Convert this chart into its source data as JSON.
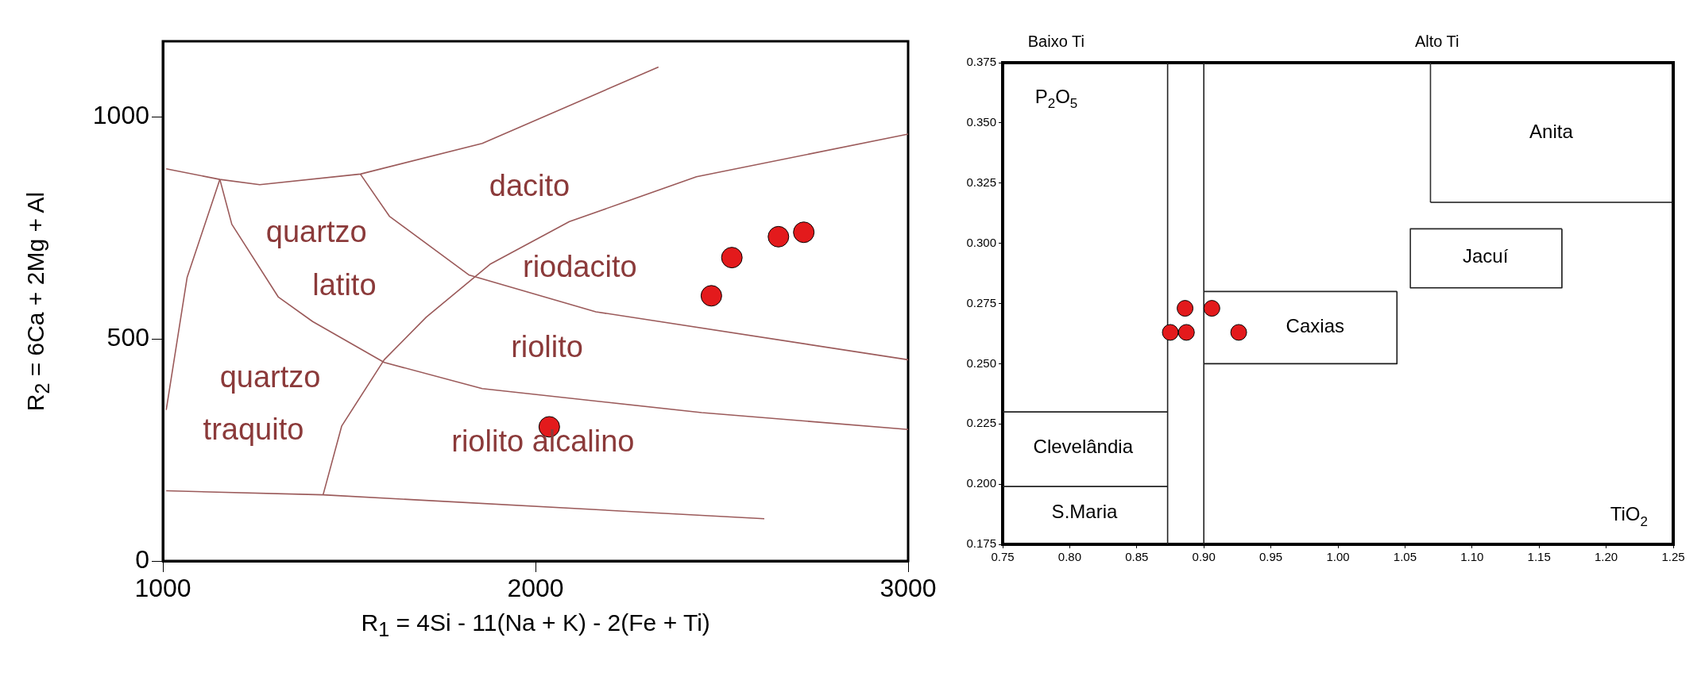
{
  "chart_data": [
    {
      "type": "scatter",
      "xlabel": "R$_{1}$ = 4Si - 11(Na + K) - 2(Fe + Ti)",
      "ylabel": "R$_{2}$ = 6Ca + 2Mg + Al",
      "xlim": [
        1000,
        3000
      ],
      "xticks": [
        1000,
        2000,
        3000
      ],
      "ylim": [
        0,
        1170
      ],
      "yticks": [
        0,
        500,
        1000
      ],
      "legend": false,
      "series": [
        {
          "type": "line",
          "marker": "none",
          "color": "#9b5a5a",
          "x": [
            1009,
            1153,
            1260,
            1530,
            1857,
            2330
          ],
          "values": [
            883,
            859,
            847,
            871,
            940,
            1112
          ]
        },
        {
          "type": "line",
          "marker": "none",
          "color": "#9b5a5a",
          "x": [
            1153,
            1185,
            1310,
            1402,
            1594,
            1857,
            2446,
            3000
          ],
          "values": [
            859,
            758,
            594,
            539,
            447,
            388,
            334,
            296
          ]
        },
        {
          "type": "line",
          "marker": "none",
          "color": "#9b5a5a",
          "x": [
            1153,
            1065,
            1009
          ],
          "values": [
            859,
            638,
            340
          ]
        },
        {
          "type": "line",
          "marker": "none",
          "color": "#9b5a5a",
          "x": [
            1530,
            1608,
            1821,
            2162,
            3000
          ],
          "values": [
            871,
            776,
            644,
            561,
            453
          ]
        },
        {
          "type": "line",
          "marker": "none",
          "color": "#9b5a5a",
          "x": [
            1430,
            1480,
            1594,
            1707,
            1878,
            2091,
            2432,
            3000
          ],
          "values": [
            149,
            304,
            453,
            549,
            668,
            764,
            865,
            961
          ]
        },
        {
          "type": "line",
          "marker": "none",
          "color": "#9b5a5a",
          "x": [
            1009,
            1430,
            2614
          ],
          "values": [
            158,
            149,
            95
          ]
        },
        {
          "type": "scatter",
          "marker": "circle",
          "color": "#e31a1c",
          "x": [
            2472,
            2527,
            2652,
            2720,
            2037
          ],
          "values": [
            597,
            683,
            730,
            740,
            302
          ]
        }
      ],
      "annotations": [
        "dacito",
        "quartzo",
        "latito",
        "riodacito",
        "riolito",
        "quartzo",
        "traquito",
        "riolito alcalino"
      ]
    },
    {
      "type": "scatter",
      "xlim": [
        0.75,
        1.25
      ],
      "xticks": [
        0.75,
        {
          "value": 0.8,
          "label": "0.80"
        },
        0.85,
        {
          "value": 0.9,
          "label": "0.90"
        },
        0.95,
        {
          "value": 1,
          "label": "1.00"
        },
        1.05,
        {
          "value": 1.1,
          "label": "1.10"
        },
        1.15,
        {
          "value": 1.2,
          "label": "1.20"
        },
        1.25
      ],
      "ylim": [
        0.175,
        0.375
      ],
      "yticks": [
        0.175,
        {
          "value": 0.2,
          "label": "0.200"
        },
        0.225,
        {
          "value": 0.25,
          "label": "0.250"
        },
        0.275,
        {
          "value": 0.3,
          "label": "0.300"
        },
        0.325,
        {
          "value": 0.35,
          "label": "0.350"
        },
        0.375
      ],
      "legend": false,
      "series": [
        {
          "type": "line",
          "marker": "none",
          "color": "#222222",
          "x": [
            0.873,
            0.873
          ],
          "values": [
            0.175,
            0.375
          ]
        },
        {
          "type": "line",
          "marker": "none",
          "color": "#222222",
          "x": [
            0.9,
            0.9
          ],
          "values": [
            0.175,
            0.375
          ]
        },
        {
          "type": "line",
          "marker": "none",
          "color": "#222222",
          "x": [
            0.75,
            0.873
          ],
          "values": [
            0.199,
            0.199
          ]
        },
        {
          "type": "line",
          "marker": "none",
          "color": "#222222",
          "x": [
            0.75,
            0.873
          ],
          "values": [
            0.23,
            0.23
          ]
        },
        {
          "type": "line",
          "marker": "none",
          "color": "#1c1c1c",
          "x": [
            0.9,
            1.044,
            1.044
          ],
          "values": [
            0.25,
            0.25,
            0.28
          ]
        },
        {
          "type": "line",
          "marker": "none",
          "color": "#262626",
          "x": [
            1.044,
            0.9
          ],
          "values": [
            0.28,
            0.28
          ]
        },
        {
          "type": "line",
          "marker": "none",
          "color": "#181818",
          "x": [
            1.054,
            1.167,
            1.167
          ],
          "values": [
            0.2815,
            0.2815,
            0.306
          ]
        },
        {
          "type": "line",
          "marker": "none",
          "color": "#2a2a2a",
          "x": [
            1.167,
            1.054,
            1.054
          ],
          "values": [
            0.306,
            0.306,
            0.2815
          ]
        },
        {
          "type": "line",
          "marker": "none",
          "color": "#141414",
          "x": [
            1.069,
            1.25
          ],
          "values": [
            0.317,
            0.317
          ]
        },
        {
          "type": "line",
          "marker": "none",
          "color": "#303030",
          "x": [
            1.069,
            1.069
          ],
          "values": [
            0.317,
            0.375
          ]
        },
        {
          "type": "scatter",
          "marker": "circle",
          "color": "#e31a1c",
          "x": [
            0.875,
            0.887,
            0.886,
            0.906,
            0.926
          ],
          "values": [
            0.263,
            0.263,
            0.273,
            0.273,
            0.263
          ]
        }
      ],
      "annotations": [
        "Baixo Ti",
        "Alto Ti",
        "P$_{2}$O$_{5}$",
        "TiO$_{2}$",
        "Anita",
        "Jacuí",
        "Caxias",
        "Clevelândia",
        "S.Maria"
      ]
    }
  ]
}
